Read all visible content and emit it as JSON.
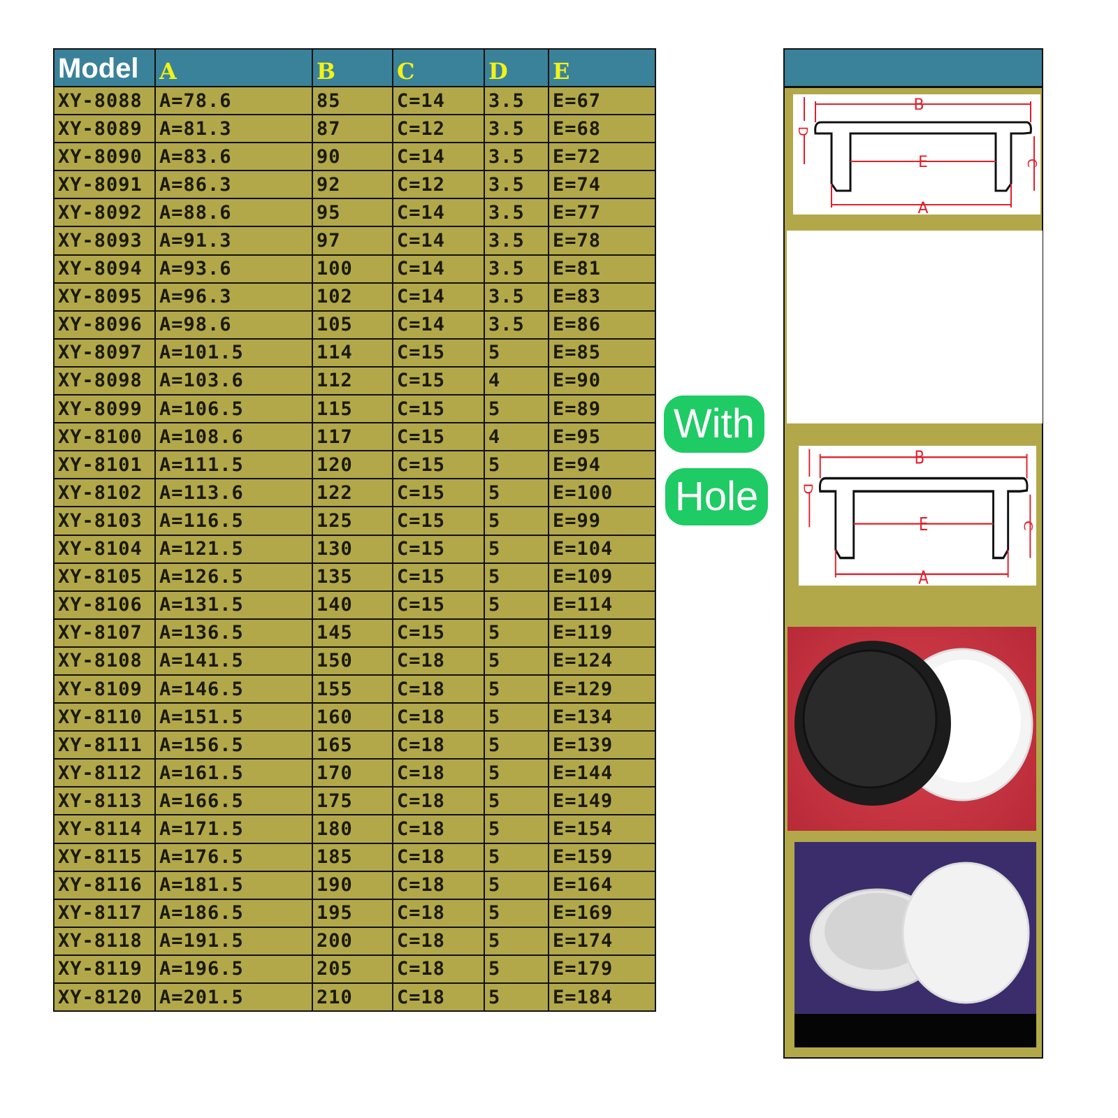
{
  "table": {
    "headers": [
      "Model",
      "A",
      "B",
      "C",
      "D",
      "E"
    ],
    "rows": [
      [
        "XY-8088",
        "A=78.6",
        "85",
        "C=14",
        "3.5",
        "E=67"
      ],
      [
        "XY-8089",
        "A=81.3",
        "87",
        "C=12",
        "3.5",
        "E=68"
      ],
      [
        "XY-8090",
        "A=83.6",
        "90",
        "C=14",
        "3.5",
        "E=72"
      ],
      [
        "XY-8091",
        "A=86.3",
        "92",
        "C=12",
        "3.5",
        "E=74"
      ],
      [
        "XY-8092",
        "A=88.6",
        "95",
        "C=14",
        "3.5",
        "E=77"
      ],
      [
        "XY-8093",
        "A=91.3",
        "97",
        "C=14",
        "3.5",
        "E=78"
      ],
      [
        "XY-8094",
        "A=93.6",
        "100",
        "C=14",
        "3.5",
        "E=81"
      ],
      [
        "XY-8095",
        "A=96.3",
        "102",
        "C=14",
        "3.5",
        "E=83"
      ],
      [
        "XY-8096",
        "A=98.6",
        "105",
        "C=14",
        "3.5",
        "E=86"
      ],
      [
        "XY-8097",
        "A=101.5",
        "114",
        "C=15",
        "5",
        "E=85"
      ],
      [
        "XY-8098",
        "A=103.6",
        "112",
        "C=15",
        "4",
        "E=90"
      ],
      [
        "XY-8099",
        "A=106.5",
        "115",
        "C=15",
        "5",
        "E=89"
      ],
      [
        "XY-8100",
        "A=108.6",
        "117",
        "C=15",
        "4",
        "E=95"
      ],
      [
        "XY-8101",
        "A=111.5",
        "120",
        "C=15",
        "5",
        "E=94"
      ],
      [
        "XY-8102",
        "A=113.6",
        "122",
        "C=15",
        "5",
        "E=100"
      ],
      [
        "XY-8103",
        "A=116.5",
        "125",
        "C=15",
        "5",
        "E=99"
      ],
      [
        "XY-8104",
        "A=121.5",
        "130",
        "C=15",
        "5",
        "E=104"
      ],
      [
        "XY-8105",
        "A=126.5",
        "135",
        "C=15",
        "5",
        "E=109"
      ],
      [
        "XY-8106",
        "A=131.5",
        "140",
        "C=15",
        "5",
        "E=114"
      ],
      [
        "XY-8107",
        "A=136.5",
        "145",
        "C=15",
        "5",
        "E=119"
      ],
      [
        "XY-8108",
        "A=141.5",
        "150",
        "C=18",
        "5",
        "E=124"
      ],
      [
        "XY-8109",
        "A=146.5",
        "155",
        "C=18",
        "5",
        "E=129"
      ],
      [
        "XY-8110",
        "A=151.5",
        "160",
        "C=18",
        "5",
        "E=134"
      ],
      [
        "XY-8111",
        "A=156.5",
        "165",
        "C=18",
        "5",
        "E=139"
      ],
      [
        "XY-8112",
        "A=161.5",
        "170",
        "C=18",
        "5",
        "E=144"
      ],
      [
        "XY-8113",
        "A=166.5",
        "175",
        "C=18",
        "5",
        "E=149"
      ],
      [
        "XY-8114",
        "A=171.5",
        "180",
        "C=18",
        "5",
        "E=154"
      ],
      [
        "XY-8115",
        "A=176.5",
        "185",
        "C=18",
        "5",
        "E=159"
      ],
      [
        "XY-8116",
        "A=181.5",
        "190",
        "C=18",
        "5",
        "E=164"
      ],
      [
        "XY-8117",
        "A=186.5",
        "195",
        "C=18",
        "5",
        "E=169"
      ],
      [
        "XY-8118",
        "A=191.5",
        "200",
        "C=18",
        "5",
        "E=174"
      ],
      [
        "XY-8119",
        "A=196.5",
        "205",
        "C=18",
        "5",
        "E=179"
      ],
      [
        "XY-8120",
        "A=201.5",
        "210",
        "C=18",
        "5",
        "E=184"
      ]
    ]
  },
  "badge": {
    "line1": "With",
    "line2": "Hole"
  },
  "diagram": {
    "labels": {
      "a": "A",
      "b": "B",
      "c": "C",
      "d": "D",
      "e": "E"
    }
  },
  "colors": {
    "header": "#3a8299",
    "cell": "#b2a84a",
    "header_letter": "#f2f21a",
    "badge": "#1fcb64",
    "dimension": "#e0202a"
  }
}
